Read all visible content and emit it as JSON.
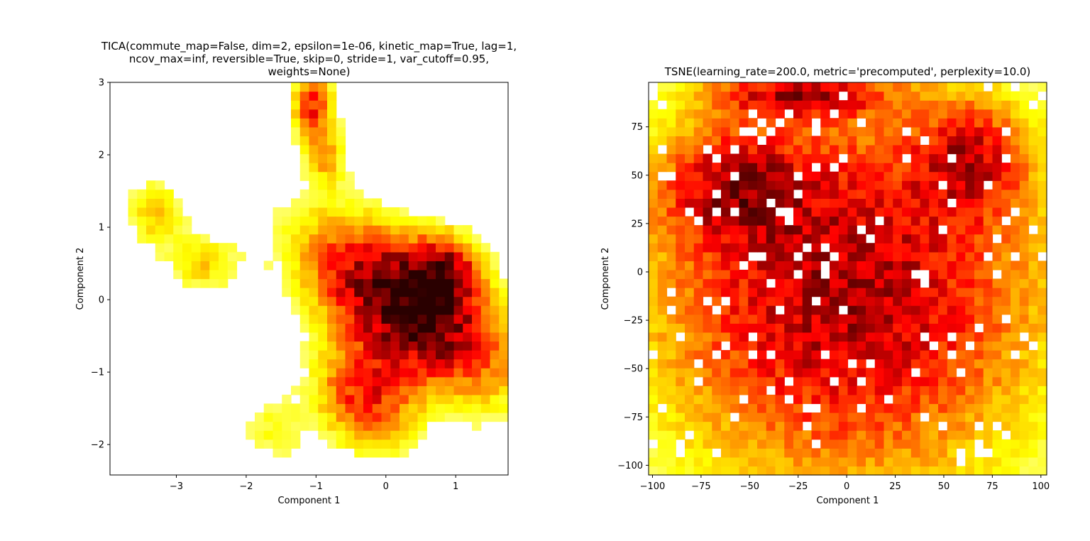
{
  "chart_data": [
    {
      "type": "heatmap",
      "title_lines": [
        "TICA(commute_map=False, dim=2, epsilon=1e-06, kinetic_map=True, lag=1,",
        "ncov_max=inf, reversible=True, skip=0, stride=1, var_cutoff=0.95,",
        "weights=None)"
      ],
      "xlabel": "Component 1",
      "ylabel": "Component 2",
      "xlim": [
        -3.95,
        1.75
      ],
      "ylim": [
        -2.42,
        3.0
      ],
      "xticks": [
        -3,
        -2,
        -1,
        0,
        1
      ],
      "yticks": [
        -2,
        -1,
        0,
        1,
        2,
        3
      ],
      "xtick_labels": [
        "−3",
        "−2",
        "−1",
        "0",
        "1"
      ],
      "ytick_labels": [
        "−2",
        "−1",
        "0",
        "1",
        "2",
        "3"
      ],
      "colormap": [
        "#ffffff",
        "#ffff00",
        "#ff8000",
        "#ff0000",
        "#800000",
        "#2a0000"
      ],
      "density_blobs": [
        {
          "x": 0.3,
          "y": -0.1,
          "sx": 0.55,
          "sy": 1.1,
          "angle": 55,
          "w": 1.0
        },
        {
          "x": 0.85,
          "y": 0.4,
          "sx": 0.35,
          "sy": 0.35,
          "angle": 0,
          "w": 0.55
        },
        {
          "x": -0.3,
          "y": -1.35,
          "sx": 0.45,
          "sy": 0.55,
          "angle": 40,
          "w": 0.55
        },
        {
          "x": -1.05,
          "y": 2.7,
          "sx": 0.2,
          "sy": 0.35,
          "angle": 0,
          "w": 0.55
        },
        {
          "x": -0.85,
          "y": 2.0,
          "sx": 0.2,
          "sy": 0.3,
          "angle": 0,
          "w": 0.3
        },
        {
          "x": -3.3,
          "y": 1.2,
          "sx": 0.3,
          "sy": 0.35,
          "angle": 0,
          "w": 0.28
        },
        {
          "x": -2.6,
          "y": 0.5,
          "sx": 0.35,
          "sy": 0.3,
          "angle": 0,
          "w": 0.26
        },
        {
          "x": -1.6,
          "y": -1.8,
          "sx": 0.35,
          "sy": 0.35,
          "angle": 0,
          "w": 0.18
        }
      ]
    },
    {
      "type": "heatmap",
      "title_lines": [
        "TSNE(learning_rate=200.0, metric='precomputed', perplexity=10.0)"
      ],
      "xlabel": "Component 1",
      "ylabel": "Component 2",
      "xlim": [
        -102,
        103
      ],
      "ylim": [
        -105,
        98
      ],
      "xticks": [
        -100,
        -75,
        -50,
        -25,
        0,
        25,
        50,
        75,
        100
      ],
      "yticks": [
        -100,
        -75,
        -50,
        -25,
        0,
        25,
        50,
        75
      ],
      "xtick_labels": [
        "−100",
        "−75",
        "−50",
        "−25",
        "0",
        "25",
        "50",
        "75",
        "100"
      ],
      "ytick_labels": [
        "−100",
        "−75",
        "−50",
        "−25",
        "0",
        "25",
        "50",
        "75"
      ],
      "colormap": [
        "#ffffff",
        "#ffff00",
        "#ff8000",
        "#ff0000",
        "#800000",
        "#2a0000"
      ],
      "density_blobs": [
        {
          "x": 0,
          "y": -10,
          "sx": 75,
          "sy": 75,
          "angle": 0,
          "w": 0.75
        },
        {
          "x": -60,
          "y": 45,
          "sx": 25,
          "sy": 20,
          "angle": 0,
          "w": 0.4
        },
        {
          "x": 65,
          "y": 60,
          "sx": 20,
          "sy": 20,
          "angle": 0,
          "w": 0.4
        },
        {
          "x": -25,
          "y": 92,
          "sx": 30,
          "sy": 8,
          "angle": 0,
          "w": 0.5
        }
      ]
    }
  ]
}
